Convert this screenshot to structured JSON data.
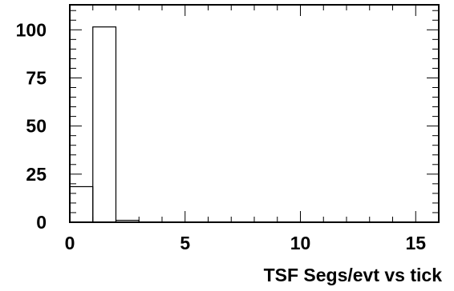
{
  "chart_data": {
    "type": "bar",
    "style": "step-histogram",
    "title": "",
    "xlabel": "TSF Segs/evt vs tick",
    "ylabel": "",
    "xlim": [
      0,
      16
    ],
    "ylim": [
      0,
      113
    ],
    "bin_width": 1,
    "bin_edges": [
      0,
      1,
      2,
      3,
      4,
      5,
      6,
      7,
      8,
      9,
      10,
      11,
      12,
      13,
      14,
      15,
      16
    ],
    "values": [
      18.5,
      101.5,
      1,
      0,
      0,
      0,
      0,
      0,
      0,
      0,
      0,
      0,
      0,
      0,
      0,
      0
    ],
    "x_ticks": [
      0,
      5,
      10,
      15
    ],
    "x_tick_labels": [
      "0",
      "5",
      "10",
      "15"
    ],
    "y_ticks": [
      0,
      25,
      50,
      75,
      100
    ],
    "y_tick_labels": [
      "0",
      "25",
      "50",
      "75",
      "100"
    ],
    "grid": false,
    "legend": "none",
    "colors": {
      "line": "#000000",
      "background": "#ffffff"
    }
  }
}
